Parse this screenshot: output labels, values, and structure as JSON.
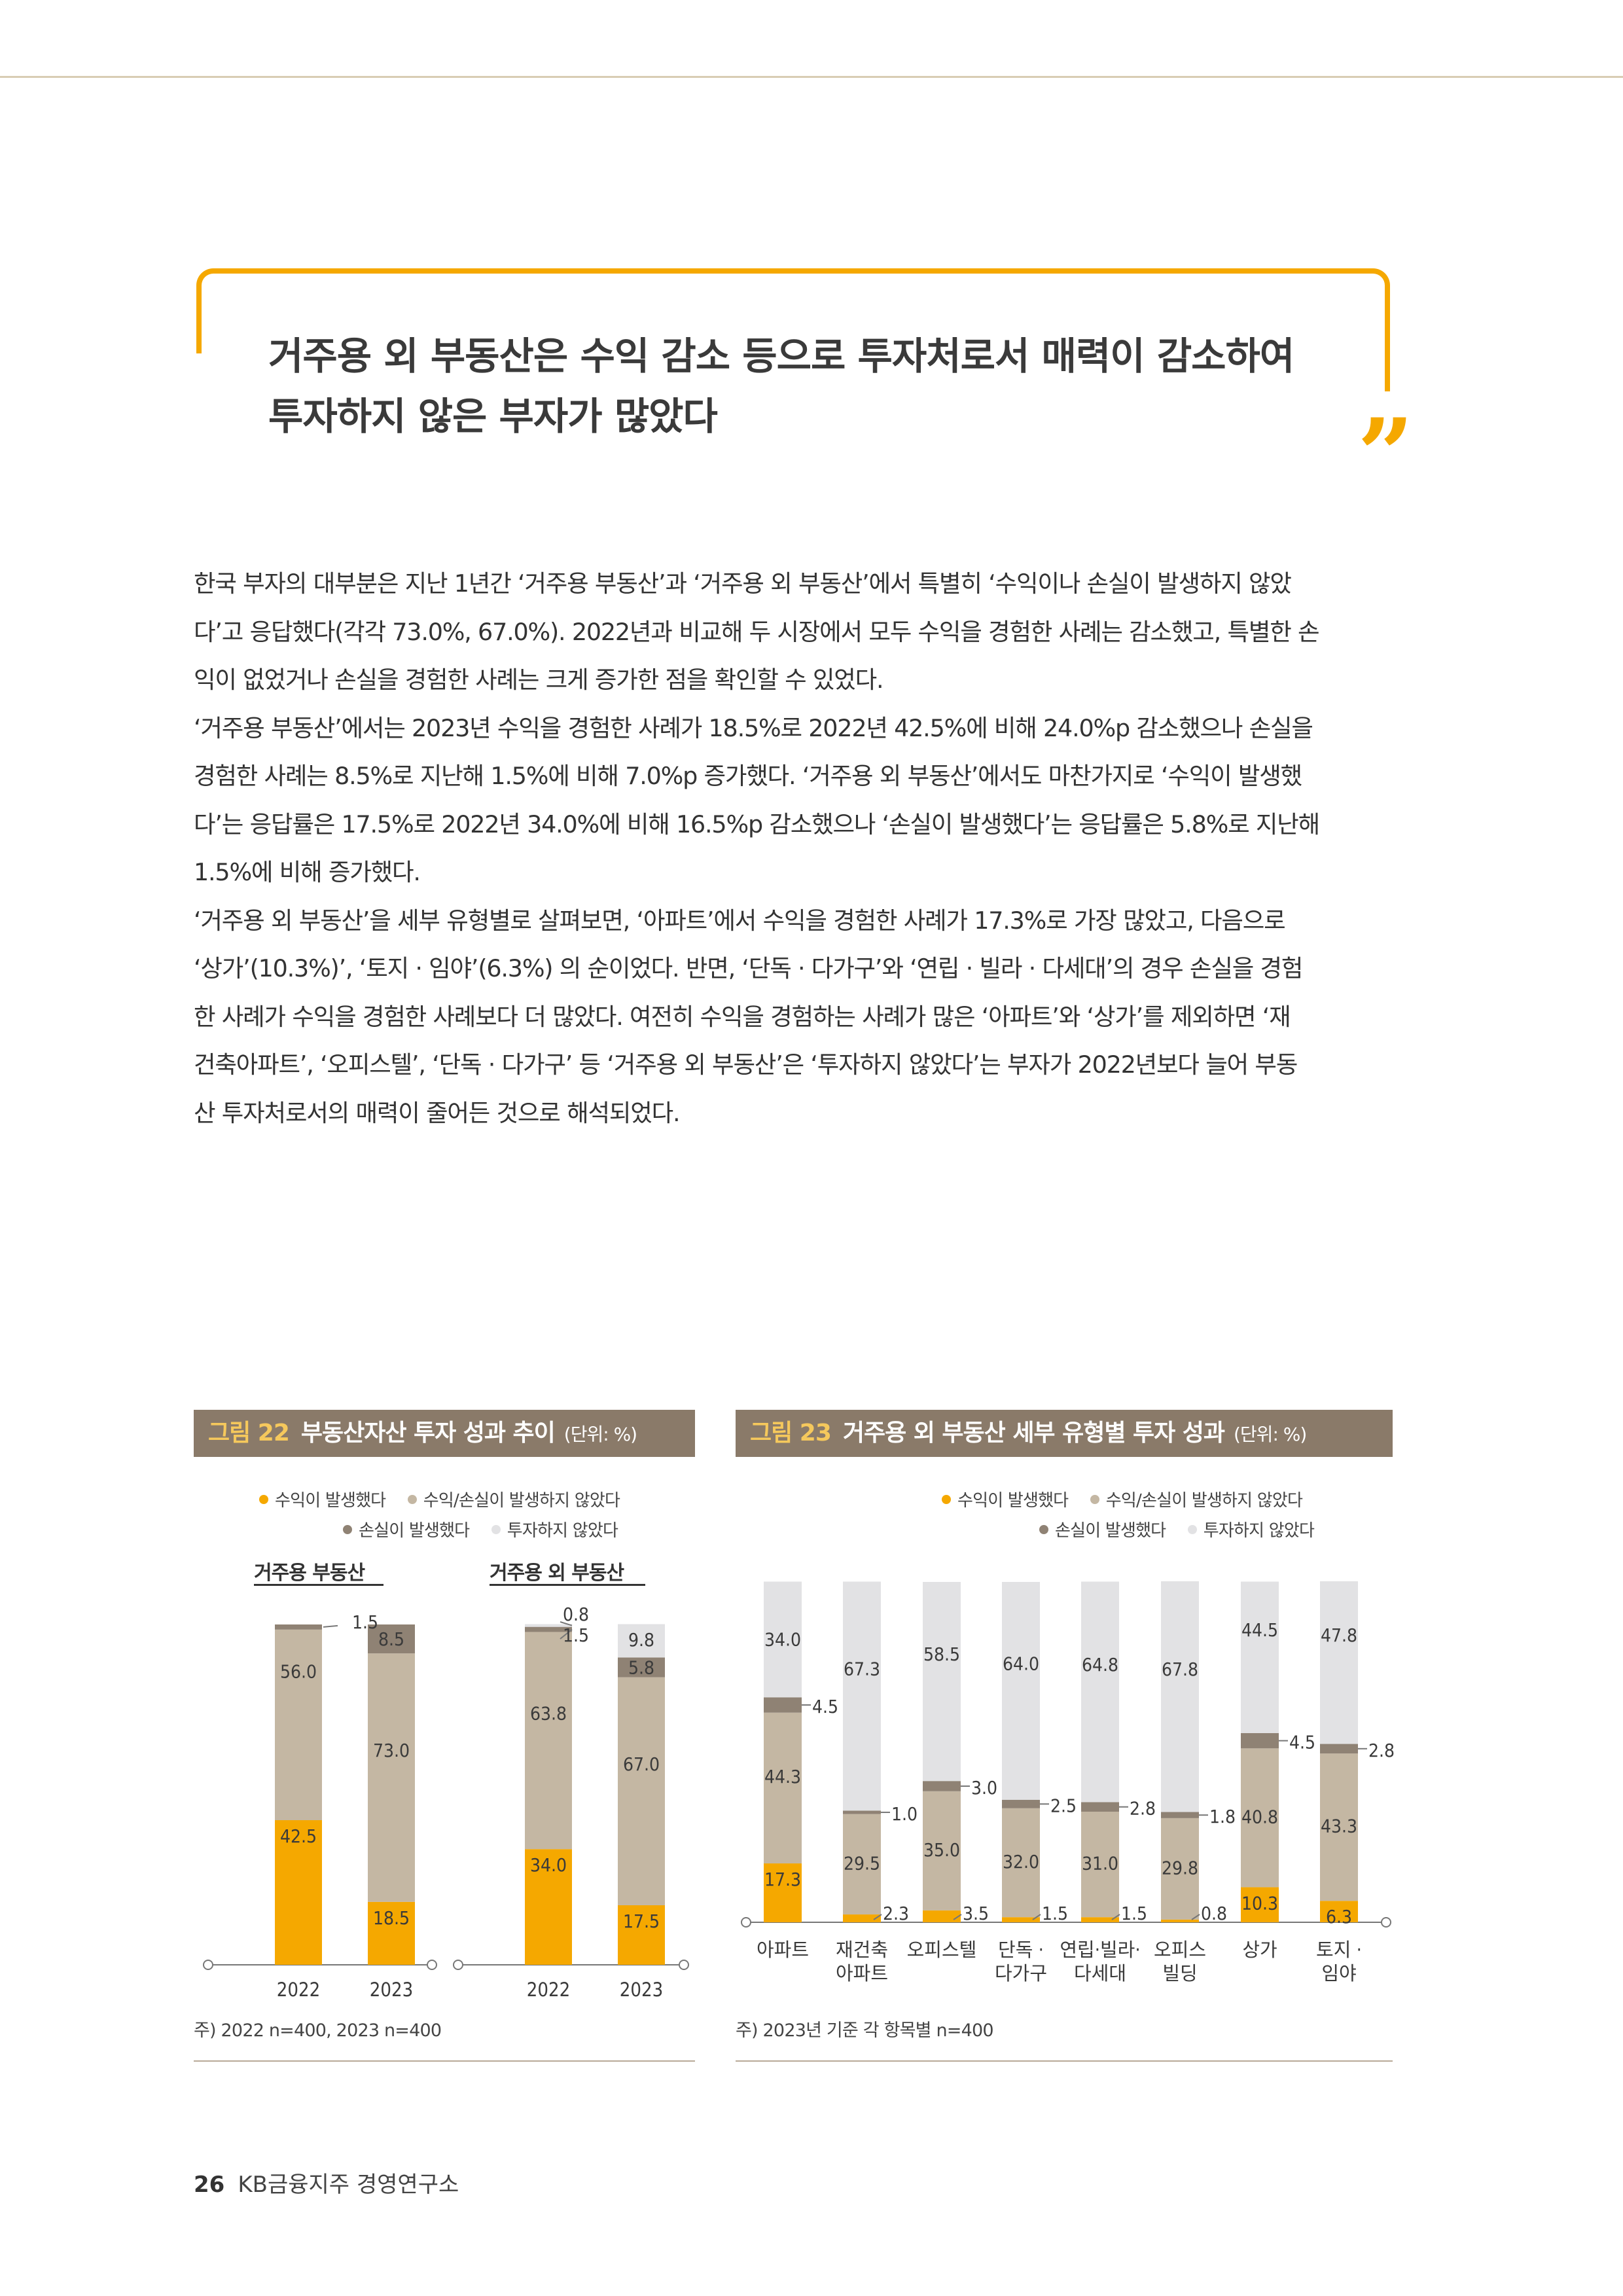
{
  "headline": {
    "lines": [
      "거주용 외 부동산은 수익 감소 등으로 투자처로서 매력이 감소하여",
      "투자하지 않은 부자가 많았다"
    ],
    "quote_mark": "”"
  },
  "body": {
    "lines": [
      "한국 부자의 대부분은 지난 1년간 ‘거주용 부동산’과 ‘거주용 외 부동산’에서 특별히 ‘수익이나 손실이 발생하지 않았",
      "다’고 응답했다(각각 73.0%, 67.0%). 2022년과 비교해 두 시장에서 모두 수익을 경험한 사례는 감소했고, 특별한 손",
      "익이 없었거나 손실을 경험한 사례는 크게 증가한 점을 확인할 수 있었다.",
      "‘거주용 부동산’에서는 2023년 수익을 경험한 사례가 18.5%로 2022년 42.5%에 비해 24.0%p 감소했으나 손실을",
      "경험한 사례는 8.5%로 지난해 1.5%에 비해 7.0%p 증가했다. ‘거주용 외 부동산’에서도 마찬가지로 ‘수익이 발생했",
      "다’는 응답률은 17.5%로 2022년 34.0%에 비해 16.5%p 감소했으나 ‘손실이 발생했다’는 응답률은 5.8%로 지난해",
      "1.5%에 비해 증가했다.",
      "‘거주용 외 부동산’을 세부 유형별로 살펴보면, ‘아파트’에서 수익을 경험한 사례가 17.3%로 가장 많았고, 다음으로",
      "‘상가’(10.3%)’, ‘토지 · 임야’(6.3%) 의 순이었다. 반면, ‘단독 · 다가구’와 ‘연립 · 빌라 · 다세대’의 경우 손실을 경험",
      "한 사례가 수익을 경험한 사례보다 더 많았다. 여전히 수익을 경험하는 사례가 많은 ‘아파트’와 ‘상가’를 제외하면 ‘재",
      "건축아파트’, ‘오피스텔’, ‘단독 · 다가구’ 등 ‘거주용 외 부동산’은 ‘투자하지 않았다’는 부자가 2022년보다 늘어 부동",
      "산 투자처로서의 매력이 줄어든 것으로 해석되었다."
    ]
  },
  "legend": {
    "profit": "수익이 발생했다",
    "none": "수익/손실이 발생하지 않았다",
    "loss": "손실이 발생했다",
    "no_invest": "투자하지 않았다"
  },
  "colors": {
    "profit": "#f5a800",
    "none": "#c4b7a3",
    "loss": "#8f8274",
    "no_invest": "#e2e2e4",
    "accent": "#f5a800",
    "header_bg": "#8a7a69"
  },
  "fig22": {
    "num": "그림 22",
    "title": "부동산자산 투자 성과 추이",
    "unit": "(단위: %)",
    "note": "주) 2022 n=400, 2023 n=400"
  },
  "fig23": {
    "num": "그림 23",
    "title": "거주용 외 부동산 세부 유형별 투자 성과",
    "unit": "(단위:  %)",
    "note": "주) 2023년 기준 각 항목별 n=400"
  },
  "chart_data": [
    {
      "type": "bar",
      "stacked": true,
      "unit": "%",
      "groups": [
        {
          "name": "거주용 부동산",
          "categories": [
            "2022",
            "2023"
          ],
          "series": [
            {
              "name": "수익이 발생했다",
              "values": [
                42.5,
                18.5
              ]
            },
            {
              "name": "수익/손실이 발생하지 않았다",
              "values": [
                56.0,
                73.0
              ]
            },
            {
              "name": "손실이 발생했다",
              "values": [
                1.5,
                8.5
              ]
            },
            {
              "name": "투자하지 않았다",
              "values": [
                0,
                0
              ]
            }
          ]
        },
        {
          "name": "거주용 외 부동산",
          "categories": [
            "2022",
            "2023"
          ],
          "series": [
            {
              "name": "수익이 발생했다",
              "values": [
                34.0,
                17.5
              ]
            },
            {
              "name": "수익/손실이 발생하지 않았다",
              "values": [
                63.8,
                67.0
              ]
            },
            {
              "name": "손실이 발생했다",
              "values": [
                1.5,
                5.8
              ]
            },
            {
              "name": "투자하지 않았다",
              "values": [
                0.8,
                9.8
              ]
            }
          ]
        }
      ],
      "ylim": [
        0,
        100
      ]
    },
    {
      "type": "bar",
      "stacked": true,
      "unit": "%",
      "categories": [
        [
          "아파트"
        ],
        [
          "재건축",
          "아파트"
        ],
        [
          "오피스텔"
        ],
        [
          "단독 ·",
          "다가구"
        ],
        [
          "연립·빌라·",
          "다세대"
        ],
        [
          "오피스",
          "빌딩"
        ],
        [
          "상가"
        ],
        [
          "토지 ·",
          "임야"
        ]
      ],
      "series": [
        {
          "name": "수익이 발생했다",
          "values": [
            17.3,
            2.3,
            3.5,
            1.5,
            1.5,
            0.8,
            10.3,
            6.3
          ]
        },
        {
          "name": "수익/손실이 발생하지 않았다",
          "values": [
            44.3,
            29.5,
            35.0,
            32.0,
            31.0,
            29.8,
            40.8,
            43.3
          ]
        },
        {
          "name": "손실이 발생했다",
          "values": [
            4.5,
            1.0,
            3.0,
            2.5,
            2.8,
            1.8,
            4.5,
            2.8
          ]
        },
        {
          "name": "투자하지 않았다",
          "values": [
            34.0,
            67.3,
            58.5,
            64.0,
            64.8,
            67.8,
            44.5,
            47.8
          ]
        }
      ],
      "ylim": [
        0,
        100
      ]
    }
  ],
  "footer": {
    "page": "26",
    "org": "KB금융지주 경영연구소"
  }
}
